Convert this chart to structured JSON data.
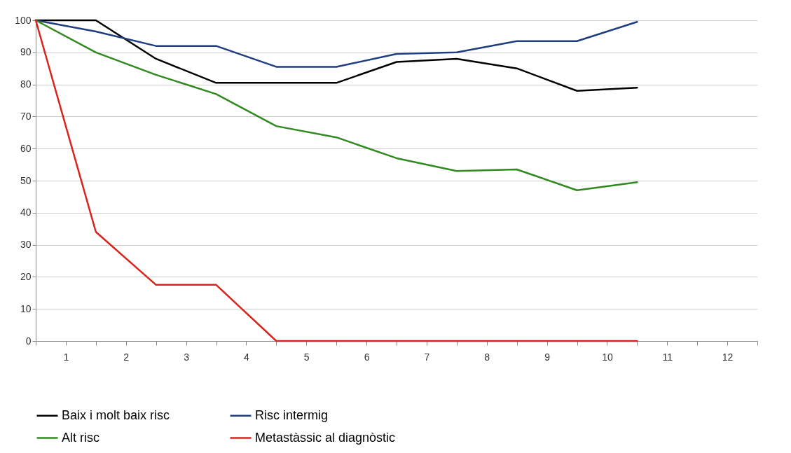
{
  "chart_data": {
    "type": "line",
    "x": [
      0,
      1,
      2,
      3,
      4,
      5,
      6,
      7,
      8,
      9,
      10
    ],
    "series": [
      {
        "name": "Baix i molt baix risc",
        "color": "#000000",
        "values": [
          100,
          100,
          88,
          80.5,
          80.5,
          80.5,
          87,
          88,
          85,
          78,
          79
        ]
      },
      {
        "name": "Risc intermig",
        "color": "#203d80",
        "values": [
          100,
          96.5,
          92,
          92,
          85.5,
          85.5,
          89.5,
          90,
          93.5,
          93.5,
          99.5
        ]
      },
      {
        "name": "Alt risc",
        "color": "#318a1f",
        "values": [
          100,
          90,
          83,
          77,
          67,
          63.5,
          57,
          53,
          53.5,
          47,
          49.5
        ]
      },
      {
        "name": "Metastàssic al diagnòstic",
        "color": "#d9231c",
        "values": [
          100,
          34,
          17.5,
          17.5,
          0,
          0,
          0,
          0,
          0,
          0,
          0
        ]
      }
    ],
    "xlim": [
      0,
      12
    ],
    "xticks": [
      {
        "value": 0,
        "label": null
      },
      {
        "value": 0.5,
        "label": "1"
      },
      {
        "value": 1,
        "label": null
      },
      {
        "value": 1.5,
        "label": "2"
      },
      {
        "value": 2,
        "label": null
      },
      {
        "value": 2.5,
        "label": "3"
      },
      {
        "value": 3,
        "label": null
      },
      {
        "value": 3.5,
        "label": "4"
      },
      {
        "value": 4,
        "label": null
      },
      {
        "value": 4.5,
        "label": "5"
      },
      {
        "value": 5,
        "label": null
      },
      {
        "value": 5.5,
        "label": "6"
      },
      {
        "value": 6,
        "label": null
      },
      {
        "value": 6.5,
        "label": "7"
      },
      {
        "value": 7,
        "label": null
      },
      {
        "value": 7.5,
        "label": "8"
      },
      {
        "value": 8,
        "label": null
      },
      {
        "value": 8.5,
        "label": "9"
      },
      {
        "value": 9,
        "label": null
      },
      {
        "value": 9.5,
        "label": "10"
      },
      {
        "value": 10,
        "label": null
      },
      {
        "value": 10.5,
        "label": "11"
      },
      {
        "value": 11,
        "label": null
      },
      {
        "value": 11.5,
        "label": "12"
      },
      {
        "value": 12,
        "label": null
      }
    ],
    "ylim": [
      0,
      100
    ],
    "yticks": [
      0,
      10,
      20,
      30,
      40,
      50,
      60,
      70,
      80,
      90,
      100
    ],
    "grid": "y",
    "legend": "bottom",
    "marker": "none",
    "line_style": "solid"
  }
}
